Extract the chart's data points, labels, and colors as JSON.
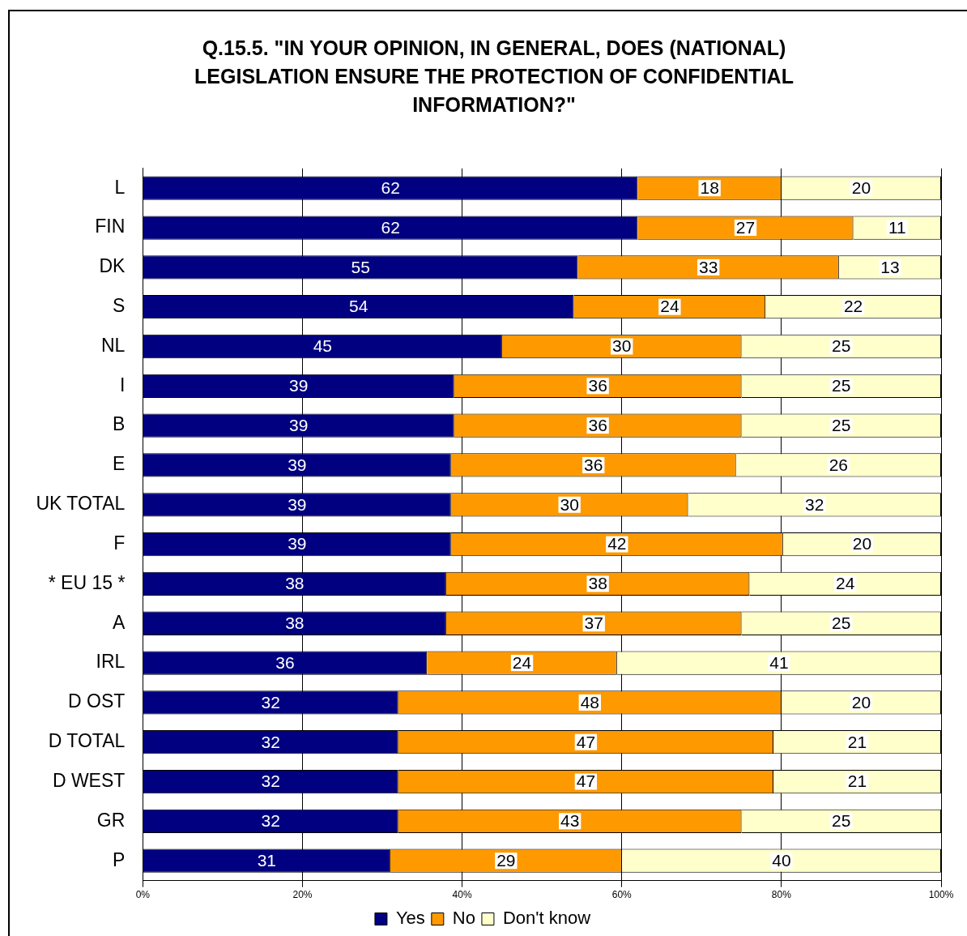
{
  "chart_data": {
    "type": "bar",
    "orientation": "horizontal",
    "stacked": true,
    "title": "Q.15.5. \"IN YOUR OPINION, IN GENERAL, DOES (NATIONAL) LEGISLATION ENSURE THE PROTECTION OF CONFIDENTIAL INFORMATION?\"",
    "categories": [
      "L",
      "FIN",
      "DK",
      "S",
      "NL",
      "I",
      "B",
      "E",
      "UK TOTAL",
      "F",
      "* EU 15 *",
      "A",
      "IRL",
      "D OST",
      "D TOTAL",
      "D WEST",
      "GR",
      "P"
    ],
    "series": [
      {
        "name": "Yes",
        "color": "#000080",
        "values": [
          62,
          62,
          54.5,
          54,
          45,
          39,
          39,
          38.6,
          38.6,
          38.6,
          38,
          38,
          35.6,
          32,
          32,
          32,
          32,
          31
        ],
        "value_labels": [
          "62",
          "62",
          "55",
          "54",
          "45",
          "39",
          "39",
          "39",
          "39",
          "39",
          "38",
          "38",
          "36",
          "32",
          "32",
          "32",
          "32",
          "31"
        ]
      },
      {
        "name": "No",
        "color": "#ff9900",
        "values": [
          18,
          27,
          32.7,
          24,
          30,
          36,
          36,
          35.7,
          29.7,
          41.6,
          38,
          37,
          23.8,
          48,
          47,
          47,
          43,
          29
        ],
        "value_labels": [
          "18",
          "27",
          "33",
          "24",
          "30",
          "36",
          "36",
          "36",
          "30",
          "42",
          "38",
          "37",
          "24",
          "48",
          "47",
          "47",
          "43",
          "29"
        ]
      },
      {
        "name": "Don't know",
        "color": "#ffffcc",
        "values": [
          20,
          11,
          12.8,
          22,
          25,
          25,
          25,
          25.7,
          31.7,
          19.8,
          24,
          25,
          40.6,
          20,
          21,
          21,
          25,
          40
        ],
        "value_labels": [
          "20",
          "11",
          "13",
          "22",
          "25",
          "25",
          "25",
          "26",
          "32",
          "20",
          "24",
          "25",
          "41",
          "20",
          "21",
          "21",
          "25",
          "40"
        ]
      }
    ],
    "xlim": [
      0,
      100
    ],
    "xticks": [
      {
        "value": 0,
        "label": "0%"
      },
      {
        "value": 20,
        "label": "20%"
      },
      {
        "value": 40,
        "label": "40%"
      },
      {
        "value": 60,
        "label": "60%"
      },
      {
        "value": 80,
        "label": "80%"
      },
      {
        "value": 100,
        "label": "100%"
      }
    ],
    "grid": "x",
    "legend": "bottom"
  }
}
